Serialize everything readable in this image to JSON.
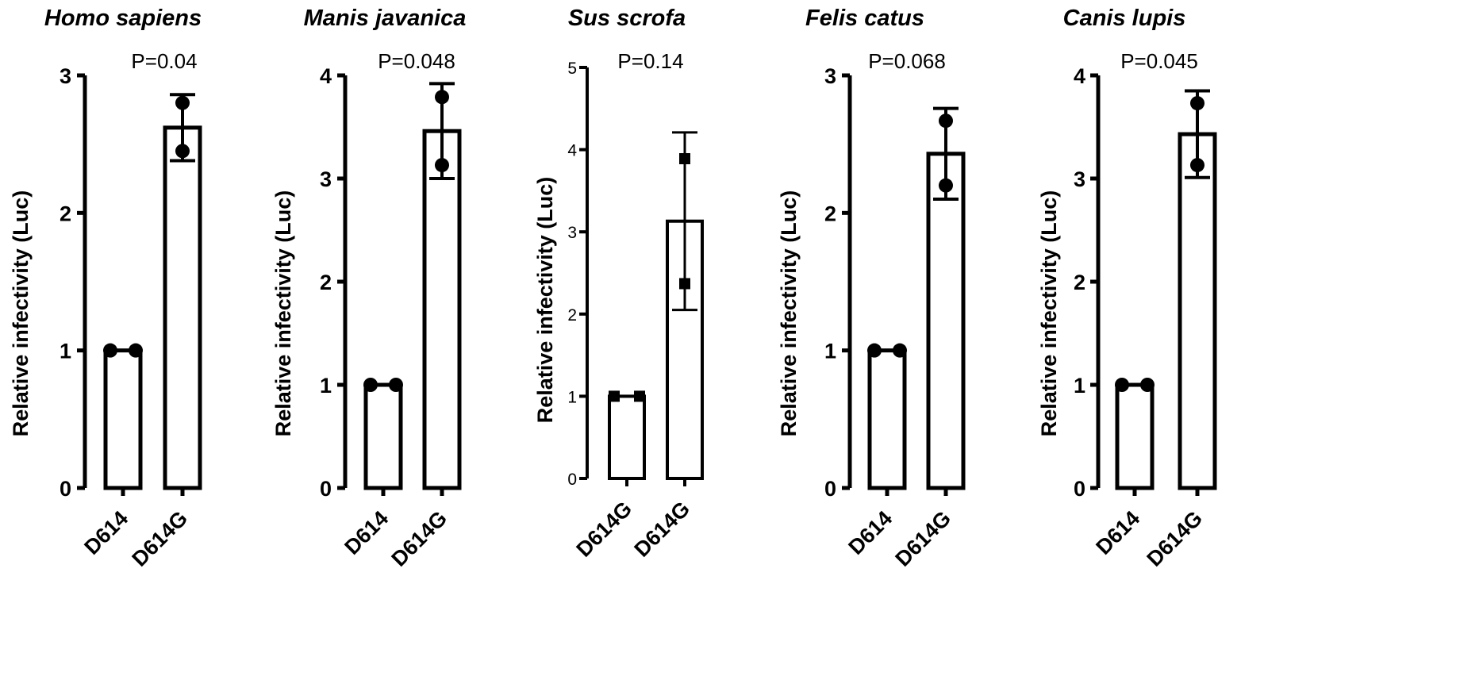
{
  "chart_data": [
    {
      "type": "bar",
      "title": "Homo sapiens",
      "annotation": "P=0.04",
      "ylabel": "Relative infectivity (Luc)",
      "ylim": [
        0,
        3
      ],
      "yticks": [
        "0",
        "1",
        "2",
        "3"
      ],
      "categories": [
        "D614",
        "D614G"
      ],
      "values": [
        1.0,
        2.62
      ],
      "error": [
        0,
        0.24
      ],
      "points": [
        [
          1.0,
          1.0
        ],
        [
          2.8,
          2.45
        ]
      ],
      "marker": "circle"
    },
    {
      "type": "bar",
      "title": "Manis javanica",
      "annotation": "P=0.048",
      "ylabel": "Relative infectivity (Luc)",
      "ylim": [
        0,
        4
      ],
      "yticks": [
        "0",
        "1",
        "2",
        "3",
        "4"
      ],
      "categories": [
        "D614",
        "D614G"
      ],
      "values": [
        1.0,
        3.46
      ],
      "error": [
        0,
        0.46
      ],
      "points": [
        [
          1.0,
          1.0
        ],
        [
          3.79,
          3.13
        ]
      ],
      "marker": "circle"
    },
    {
      "type": "bar",
      "title": "Sus scrofa",
      "annotation": "P=0.14",
      "ylabel": "Relative infectivity (Luc)",
      "ylim": [
        0,
        5
      ],
      "yticks": [
        "0",
        "1",
        "2",
        "3",
        "4",
        "5"
      ],
      "categories": [
        "D614G",
        "D614G"
      ],
      "values": [
        1.0,
        3.13
      ],
      "error": [
        0,
        1.08
      ],
      "points": [
        [
          1.0,
          1.0
        ],
        [
          3.89,
          2.37
        ]
      ],
      "marker": "square"
    },
    {
      "type": "bar",
      "title": "Felis catus",
      "annotation": "P=0.068",
      "ylabel": "Relative infectivity (Luc)",
      "ylim": [
        0,
        3
      ],
      "yticks": [
        "0",
        "1",
        "2",
        "3"
      ],
      "categories": [
        "D614",
        "D614G"
      ],
      "values": [
        1.0,
        2.43
      ],
      "error": [
        0,
        0.33
      ],
      "points": [
        [
          1.0,
          1.0
        ],
        [
          2.67,
          2.2
        ]
      ],
      "marker": "circle"
    },
    {
      "type": "bar",
      "title": "Canis lupis",
      "annotation": "P=0.045",
      "ylabel": "Relative infectivity (Luc)",
      "ylim": [
        0,
        4
      ],
      "yticks": [
        "0",
        "1",
        "2",
        "3",
        "4"
      ],
      "categories": [
        "D614",
        "D614G"
      ],
      "values": [
        1.0,
        3.43
      ],
      "error": [
        0,
        0.42
      ],
      "points": [
        [
          1.0,
          1.0
        ],
        [
          3.73,
          3.13
        ]
      ],
      "marker": "circle"
    }
  ]
}
